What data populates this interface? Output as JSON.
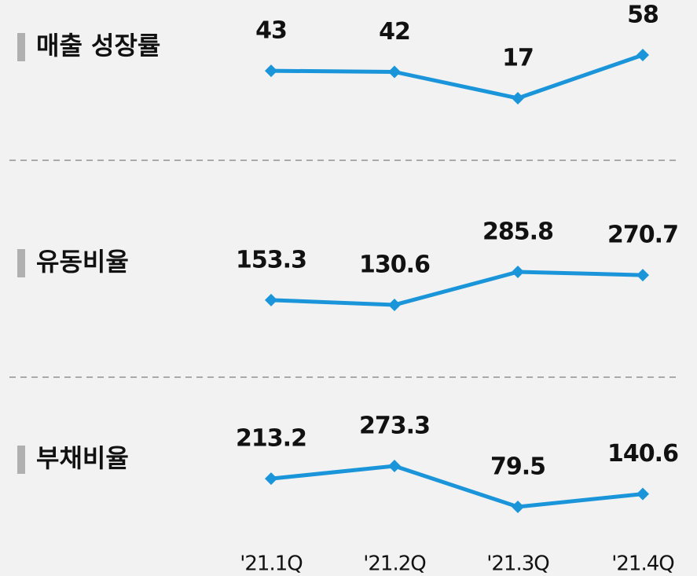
{
  "chart_data": {
    "type": "line",
    "categories": [
      "'21.1Q",
      "'21.2Q",
      "'21.3Q",
      "'21.4Q"
    ],
    "series": [
      {
        "name": "매출 성장률",
        "color": "#1b95d9",
        "values": [
          43,
          42,
          17,
          58
        ]
      },
      {
        "name": "유동비율",
        "color": "#1b95d9",
        "values": [
          153.3,
          130.6,
          285.8,
          270.7
        ]
      },
      {
        "name": "부채비율",
        "color": "#1b95d9",
        "values": [
          213.2,
          273.3,
          79.5,
          140.6
        ]
      }
    ]
  }
}
